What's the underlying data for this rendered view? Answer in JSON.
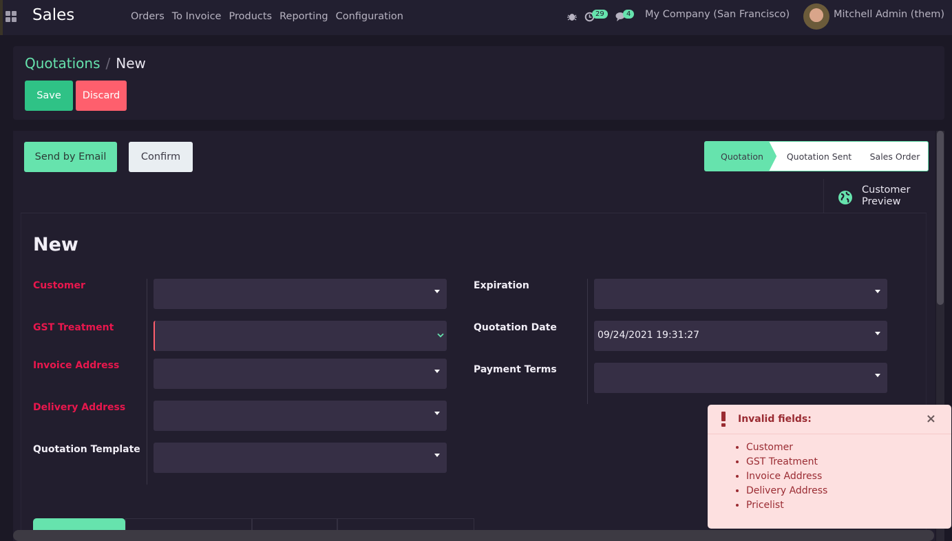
{
  "topbar": {
    "app_name": "Sales",
    "menu": [
      "Orders",
      "To Invoice",
      "Products",
      "Reporting",
      "Configuration"
    ],
    "activity_count": "29",
    "message_count": "4",
    "company": "My Company (San Francisco)",
    "user": "Mitchell Admin (them)"
  },
  "breadcrumb": {
    "parent": "Quotations",
    "separator": "/",
    "current": "New"
  },
  "actions": {
    "save": "Save",
    "discard": "Discard"
  },
  "header_buttons": {
    "send_email": "Send by Email",
    "confirm": "Confirm"
  },
  "stages": [
    {
      "label": "Quotation",
      "active": true
    },
    {
      "label": "Quotation Sent",
      "active": false
    },
    {
      "label": "Sales Order",
      "active": false
    }
  ],
  "smart_button": {
    "line1": "Customer",
    "line2": "Preview",
    "icon": "globe-icon"
  },
  "form": {
    "title": "New",
    "left_fields": [
      {
        "label": "Customer",
        "value": "",
        "required": true
      },
      {
        "label": "GST Treatment",
        "value": "",
        "required": true
      },
      {
        "label": "Invoice Address",
        "value": "",
        "required": true
      },
      {
        "label": "Delivery Address",
        "value": "",
        "required": true
      },
      {
        "label": "Quotation Template",
        "value": "",
        "required": false
      }
    ],
    "right_fields": [
      {
        "label": "Expiration",
        "value": ""
      },
      {
        "label": "Quotation Date",
        "value": "09/24/2021 19:31:27"
      },
      {
        "label": "Payment Terms",
        "value": ""
      }
    ]
  },
  "notification": {
    "title": "Invalid fields:",
    "items": [
      "Customer",
      "GST Treatment",
      "Invoice Address",
      "Delivery Address",
      "Pricelist"
    ],
    "close": "×"
  },
  "colors": {
    "accent": "#66e3ad",
    "save": "#2fc286",
    "discard": "#fe5f6d",
    "required": "#e8174d",
    "toast_bg": "#fde0e0"
  }
}
